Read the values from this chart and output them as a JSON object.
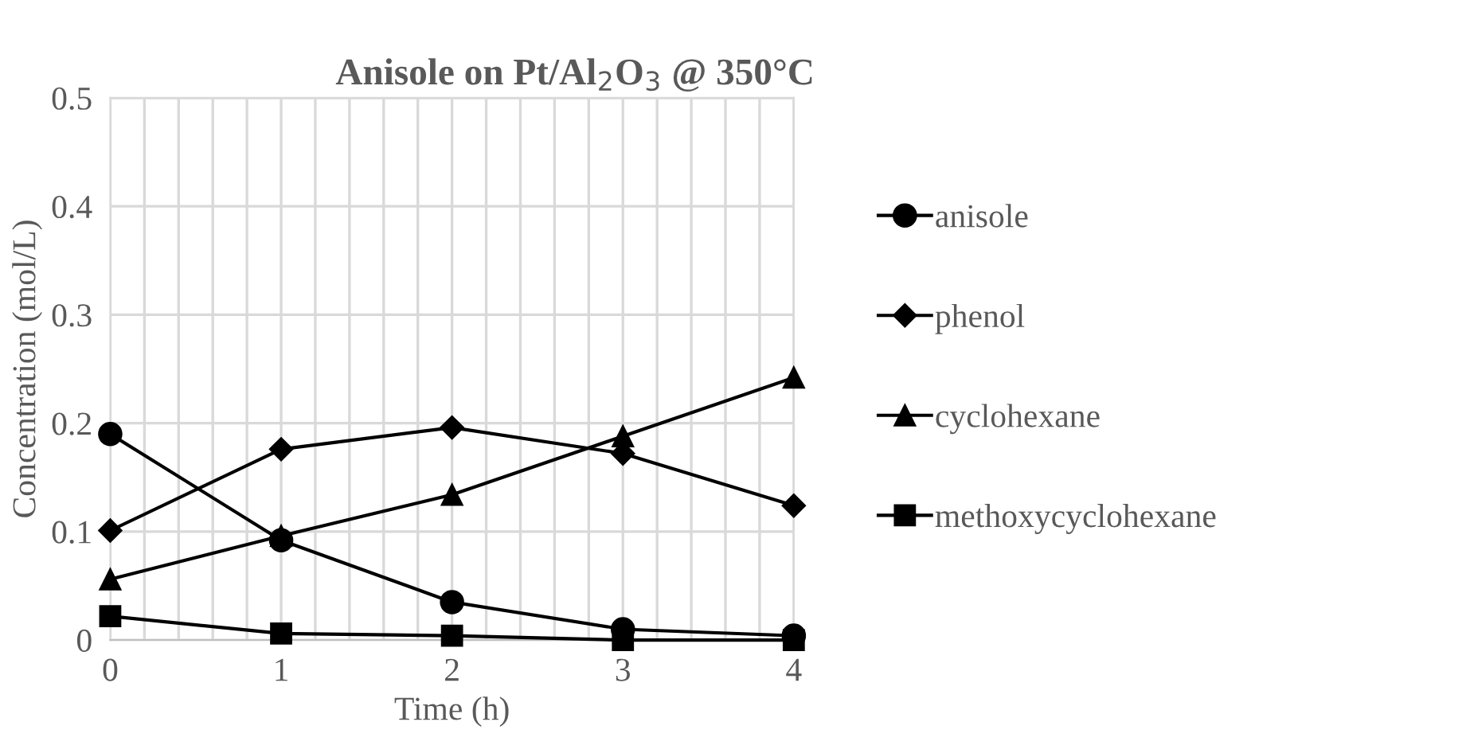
{
  "chart_data": {
    "type": "line",
    "title": "Anisole on Pt/Al$_{2}$O$_{3}$ @ 350°C",
    "xlabel": "Time (h)",
    "ylabel": "Concentration (mol/L)",
    "x": [
      0,
      1,
      2,
      3,
      4
    ],
    "series": [
      {
        "name": "anisole",
        "color": "#000000",
        "marker": "circle",
        "values": [
          0.19,
          0.092,
          0.035,
          0.01,
          0.004
        ]
      },
      {
        "name": "phenol",
        "color": "#000000",
        "marker": "diamond",
        "values": [
          0.101,
          0.176,
          0.196,
          0.172,
          0.124
        ]
      },
      {
        "name": "cyclohexane",
        "color": "#000000",
        "marker": "triangle",
        "values": [
          0.056,
          0.096,
          0.134,
          0.188,
          0.242
        ]
      },
      {
        "name": "methoxycyclohexane",
        "color": "#000000",
        "marker": "square",
        "values": [
          0.022,
          0.006,
          0.004,
          0,
          0
        ]
      }
    ],
    "xlim": [
      0,
      4
    ],
    "ylim": [
      0,
      0.5
    ],
    "xticks": [
      0,
      {
        "value": 0.2,
        "label": null
      },
      {
        "value": 0.4,
        "label": null
      },
      {
        "value": 0.6,
        "label": null
      },
      {
        "value": 0.8,
        "label": null
      },
      1,
      {
        "value": 1.2,
        "label": null
      },
      {
        "value": 1.4,
        "label": null
      },
      {
        "value": 1.6,
        "label": null
      },
      {
        "value": 1.8,
        "label": null
      },
      2,
      {
        "value": 2.2,
        "label": null
      },
      {
        "value": 2.4,
        "label": null
      },
      {
        "value": 2.6,
        "label": null
      },
      {
        "value": 2.8,
        "label": null
      },
      3,
      {
        "value": 3.2,
        "label": null
      },
      {
        "value": 3.4,
        "label": null
      },
      {
        "value": 3.6,
        "label": null
      },
      {
        "value": 3.8,
        "label": null
      },
      4
    ],
    "yticks": [
      0,
      0.1,
      0.2,
      0.3,
      0.4,
      0.5
    ],
    "grid": true,
    "legend": "right",
    "line_style": "solid"
  }
}
